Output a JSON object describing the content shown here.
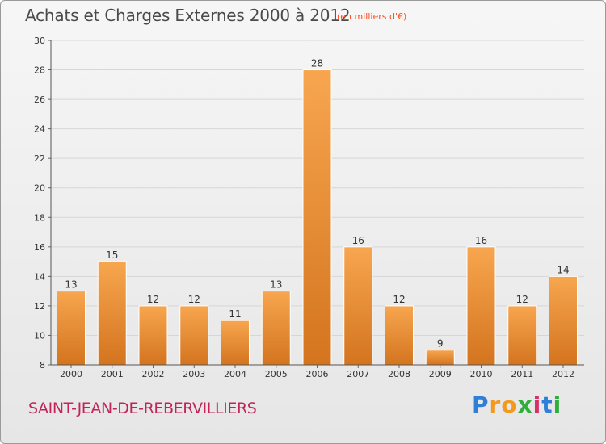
{
  "header": {
    "title": "Achats et Charges Externes 2000 à 2012",
    "subtitle": "(en milliers d'€)"
  },
  "footer": {
    "town": "SAINT-JEAN-DE-REBERVILLIERS",
    "logo": {
      "letters": [
        "P",
        "r",
        "o",
        "x",
        "i",
        "t",
        "i"
      ],
      "colors": [
        "#2f7fd8",
        "#f29a1f",
        "#f29a1f",
        "#2fae3c",
        "#d82f6a",
        "#2f7fd8",
        "#2fae3c"
      ]
    }
  },
  "colors": {
    "bar_light": "#f7a64f",
    "bar_dark": "#d4741f",
    "title": "#4a4a4a",
    "subtitle": "#ff4a1c",
    "town": "#c2245a"
  },
  "chart_data": {
    "type": "bar",
    "categories": [
      "2000",
      "2001",
      "2002",
      "2003",
      "2004",
      "2005",
      "2006",
      "2007",
      "2008",
      "2009",
      "2010",
      "2011",
      "2012"
    ],
    "values": [
      13,
      15,
      12,
      12,
      11,
      13,
      28,
      16,
      12,
      9,
      16,
      12,
      14
    ],
    "ylim": [
      8,
      30
    ],
    "yticks": [
      8,
      10,
      12,
      14,
      16,
      18,
      20,
      22,
      24,
      26,
      28,
      30
    ],
    "grid": true,
    "data_labels": true
  }
}
